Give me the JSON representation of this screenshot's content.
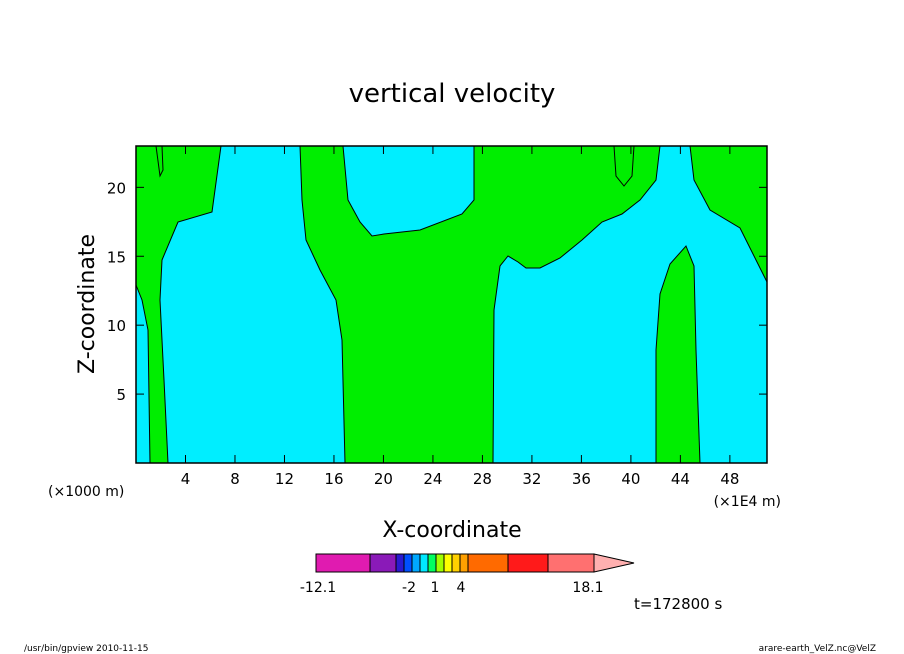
{
  "chart_data": {
    "type": "heatmap",
    "title": "vertical velocity",
    "xlabel": "X-coordinate",
    "ylabel": "Z-coordinate",
    "x_unit_left": "(×1000 m)",
    "x_unit_right": "(×1E4 m)",
    "xlim": [
      0,
      51
    ],
    "ylim": [
      0,
      23
    ],
    "x_ticks": [
      4,
      8,
      12,
      16,
      20,
      24,
      28,
      32,
      36,
      40,
      44,
      48
    ],
    "y_ticks": [
      5,
      10,
      15,
      20
    ],
    "colorbar": {
      "min_label": "-12.1",
      "max_label": "18.1",
      "tick_labels": [
        "-2",
        "1",
        "4"
      ],
      "colors": [
        "#e01bb0",
        "#8a1ab8",
        "#2a1ad0",
        "#0050ff",
        "#00a8ff",
        "#00e8ff",
        "#00ff60",
        "#a0ff00",
        "#ffff00",
        "#ffd000",
        "#ffa000",
        "#ff6a00",
        "#ff1a1a",
        "#ff7070",
        "#ffb0b0"
      ]
    },
    "regions_colors": {
      "low": "#00eeff",
      "high": "#00ee00"
    },
    "time_label": "t=172800 s"
  },
  "footer": {
    "left": "/usr/bin/gpview   2010-11-15",
    "right": "arare-earth_VelZ.nc@VelZ"
  }
}
